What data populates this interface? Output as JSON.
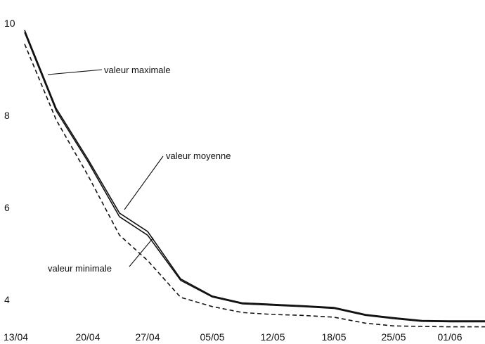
{
  "chart_data": {
    "type": "line",
    "title": "",
    "xlabel": "",
    "ylabel": "",
    "x": [
      "13/04",
      "16/04",
      "20/04",
      "23/04",
      "27/04",
      "30/04",
      "05/05",
      "09/05",
      "12/05",
      "16/05",
      "18/05",
      "22/05",
      "25/05",
      "29/05",
      "01/06",
      "05/06"
    ],
    "x_ticks": [
      "13/04",
      "20/04",
      "27/04",
      "05/05",
      "12/05",
      "18/05",
      "25/05",
      "01/06"
    ],
    "y_ticks": [
      "10",
      "8",
      "6",
      "4"
    ],
    "ylim": [
      3,
      10
    ],
    "grid": false,
    "legend": "none",
    "series": [
      {
        "key": "max",
        "style": "solid",
        "values": [
          9.85,
          8.15,
          7.05,
          5.88,
          5.48,
          4.45,
          4.08,
          3.93,
          3.9,
          3.87,
          3.83,
          3.68,
          3.61,
          3.55,
          3.54,
          3.54
        ]
      },
      {
        "key": "mean",
        "style": "solid",
        "values": [
          9.8,
          8.1,
          7.0,
          5.8,
          5.4,
          4.42,
          4.06,
          3.91,
          3.88,
          3.85,
          3.81,
          3.66,
          3.59,
          3.53,
          3.52,
          3.52
        ]
      },
      {
        "key": "min",
        "style": "dashed",
        "values": [
          9.55,
          7.9,
          6.7,
          5.4,
          4.85,
          4.05,
          3.85,
          3.72,
          3.68,
          3.66,
          3.62,
          3.49,
          3.43,
          3.42,
          3.41,
          3.41
        ]
      }
    ],
    "annotations": [
      {
        "text": "valeur maximale",
        "series": "max"
      },
      {
        "text": "valeur moyenne",
        "series": "mean"
      },
      {
        "text": "valeur minimale",
        "series": "min"
      }
    ]
  }
}
